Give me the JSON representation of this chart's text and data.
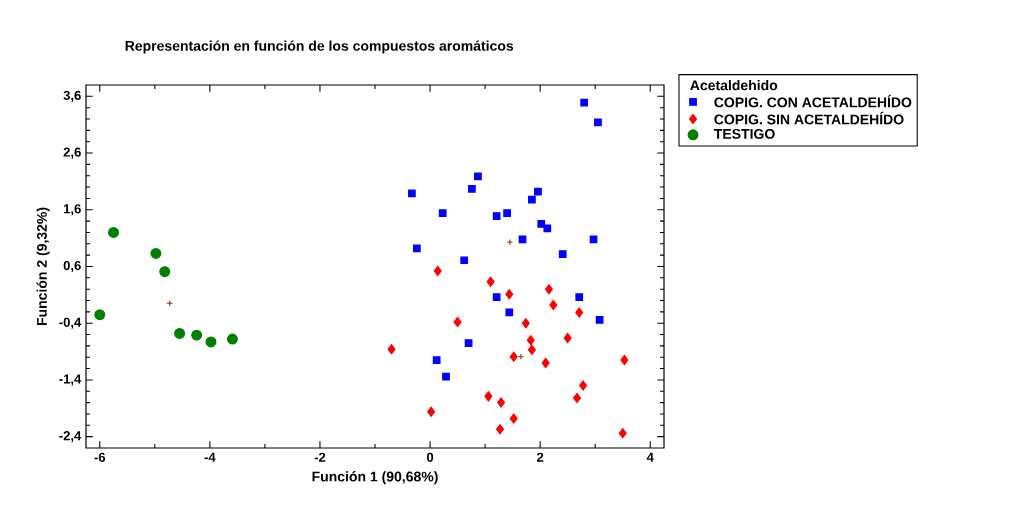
{
  "chart_data": {
    "type": "scatter",
    "title": "Representación en función de los compuestos aromáticos",
    "xlabel": "Función 1 (90,68%)",
    "ylabel": "Función 2 (9,32%)",
    "legend_title": "Acetaldehido",
    "legend": "right",
    "xlim": [
      -6.25,
      4.25
    ],
    "ylim": [
      -2.6,
      3.8
    ],
    "xticks": [
      -6,
      -4,
      -2,
      0,
      2,
      4
    ],
    "yticks": [
      {
        "value": -2.4,
        "label": "-2,4"
      },
      {
        "value": -1.4,
        "label": "-1,4"
      },
      {
        "value": -0.4,
        "label": "-0,4"
      },
      {
        "value": 0.6,
        "label": "0,6"
      },
      {
        "value": 1.6,
        "label": "1,6"
      },
      {
        "value": 2.6,
        "label": "2,6"
      },
      {
        "value": 3.6,
        "label": "3,6"
      }
    ],
    "series": [
      {
        "name": "COPIG. CON ACETALDEHÍDO",
        "color": "#0000ff",
        "marker": "square",
        "x": [
          2.8,
          3.05,
          0.87,
          0.76,
          -0.33,
          1.96,
          1.85,
          0.23,
          1.21,
          1.4,
          2.02,
          2.13,
          1.68,
          2.97,
          -0.24,
          2.41,
          0.62,
          1.21,
          2.71,
          1.44,
          3.08,
          0.7,
          0.12,
          0.29
        ],
        "values": [
          3.49,
          3.14,
          2.19,
          1.97,
          1.89,
          1.92,
          1.78,
          1.54,
          1.49,
          1.54,
          1.35,
          1.27,
          1.08,
          1.08,
          0.92,
          0.82,
          0.71,
          0.06,
          0.06,
          -0.21,
          -0.34,
          -0.75,
          -1.05,
          -1.34
        ]
      },
      {
        "name": "COPIG. SIN ACETALDEHÍDO",
        "color": "#ff0000",
        "marker": "diamond",
        "x": [
          0.14,
          1.1,
          1.44,
          2.16,
          2.24,
          2.71,
          0.5,
          1.74,
          -0.7,
          1.83,
          1.85,
          2.5,
          1.52,
          2.1,
          3.53,
          2.78,
          2.67,
          1.06,
          1.29,
          0.02,
          1.52,
          1.27,
          3.5
        ],
        "values": [
          0.52,
          0.33,
          0.11,
          0.2,
          -0.08,
          -0.21,
          -0.38,
          -0.4,
          -0.86,
          -0.7,
          -0.87,
          -0.66,
          -0.99,
          -1.1,
          -1.05,
          -1.5,
          -1.72,
          -1.69,
          -1.8,
          -1.96,
          -2.08,
          -2.27,
          -2.34
        ]
      },
      {
        "name": "TESTIGO",
        "color": "#008000",
        "marker": "circle",
        "x": [
          -5.75,
          -4.98,
          -4.82,
          -6.0,
          -4.55,
          -4.24,
          -3.98,
          -3.59
        ],
        "values": [
          1.2,
          0.83,
          0.51,
          -0.25,
          -0.58,
          -0.61,
          -0.73,
          -0.68
        ]
      },
      {
        "color": "#a0522d",
        "marker": "cross",
        "x": [
          -4.73,
          1.45,
          1.65
        ],
        "values": [
          -0.05,
          1.03,
          -0.99
        ]
      }
    ]
  }
}
